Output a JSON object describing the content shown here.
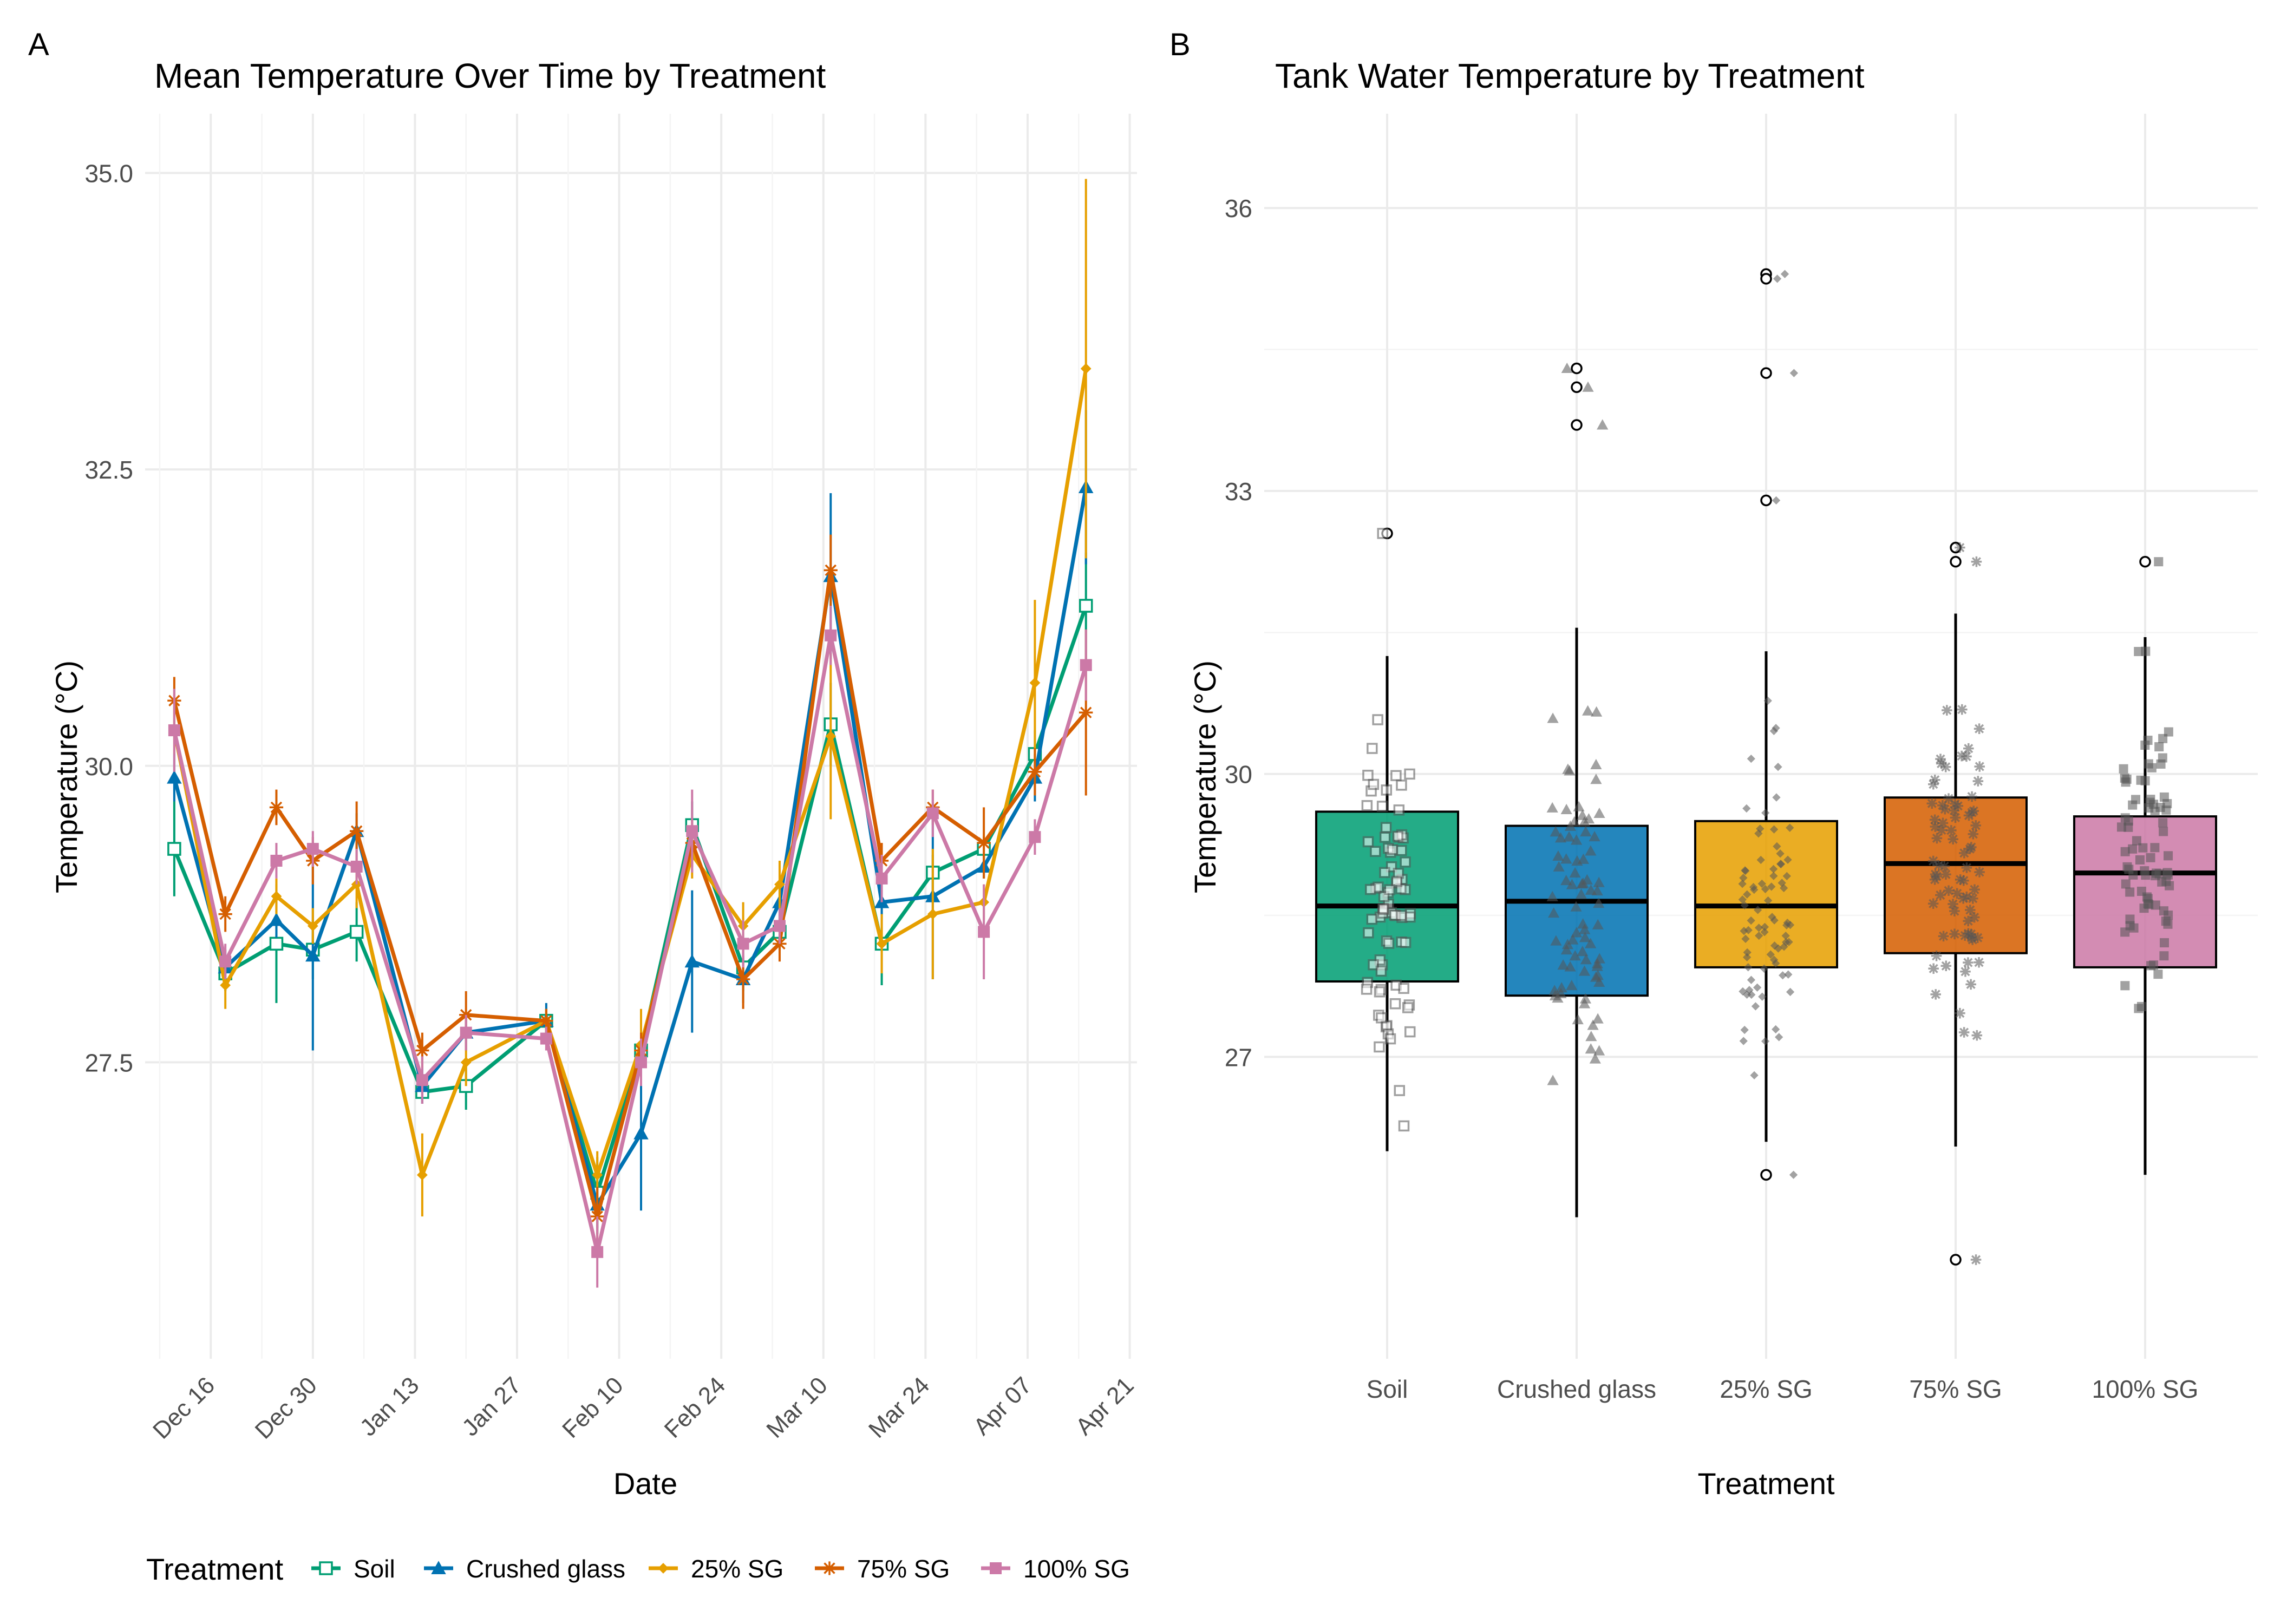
{
  "colors": {
    "soil": "#009E73",
    "crushed_glass": "#0072B2",
    "sg25": "#E69F00",
    "sg75": "#D55E00",
    "sg100": "#CC79A7",
    "grid": "#ebebeb",
    "text": "#222222",
    "axis_text": "#4d4d4d"
  },
  "chart_data": [
    {
      "panel_tag": "A",
      "type": "line",
      "title": "Mean Temperature Over Time by Treatment",
      "xlabel": "Date",
      "ylabel": "Temperature (°C)",
      "x_tick_labels": [
        "Dec 16",
        "Dec 30",
        "Jan 13",
        "Jan 27",
        "Feb 10",
        "Feb 24",
        "Mar 10",
        "Mar 24",
        "Apr 07",
        "Apr 21"
      ],
      "y_ticks": [
        27.5,
        30.0,
        32.5,
        35.0
      ],
      "y_tick_labels": [
        "27.5",
        "30.0",
        "32.5",
        "35.0"
      ],
      "ylim": [
        25.0,
        35.5
      ],
      "xlim": [
        "2024-12-07",
        "2025-04-22"
      ],
      "grid": true,
      "legend": {
        "position": "bottom",
        "title": "Treatment",
        "entries": [
          "Soil",
          "Crushed glass",
          "25% SG",
          "75% SG",
          "100% SG"
        ]
      },
      "x": [
        "2024-12-11",
        "2024-12-18",
        "2024-12-25",
        "2024-12-30",
        "2025-01-05",
        "2025-01-14",
        "2025-01-20",
        "2025-01-31",
        "2025-02-07",
        "2025-02-13",
        "2025-02-20",
        "2025-02-27",
        "2025-03-04",
        "2025-03-11",
        "2025-03-18",
        "2025-03-25",
        "2025-04-01",
        "2025-04-08",
        "2025-04-15"
      ],
      "series": [
        {
          "name": "Soil",
          "color_key": "soil",
          "marker": "square-open",
          "values": [
            29.3,
            28.25,
            28.5,
            28.45,
            28.6,
            27.25,
            27.3,
            27.85,
            26.4,
            27.6,
            29.5,
            28.3,
            28.6,
            30.35,
            28.5,
            29.1,
            29.3,
            30.1,
            31.35
          ],
          "err_low": [
            28.9,
            28.1,
            28.0,
            28.2,
            28.35,
            27.15,
            27.1,
            27.75,
            26.1,
            27.4,
            29.3,
            28.1,
            28.45,
            30.0,
            28.15,
            28.95,
            29.2,
            29.9,
            30.9
          ],
          "err_high": [
            29.7,
            28.4,
            29.0,
            28.7,
            28.85,
            27.35,
            27.5,
            27.95,
            26.7,
            27.8,
            29.7,
            28.5,
            28.75,
            30.7,
            28.85,
            29.25,
            29.4,
            30.3,
            31.8
          ]
        },
        {
          "name": "Crushed glass",
          "color_key": "crushed_glass",
          "marker": "triangle",
          "values": [
            29.9,
            28.3,
            28.7,
            28.4,
            29.45,
            27.3,
            27.75,
            27.85,
            26.3,
            26.9,
            28.35,
            28.2,
            28.85,
            31.6,
            28.85,
            28.9,
            29.15,
            29.9,
            32.35
          ],
          "err_low": [
            29.7,
            28.15,
            28.55,
            27.6,
            29.3,
            27.15,
            27.6,
            27.7,
            26.05,
            26.25,
            27.75,
            28.0,
            28.7,
            30.9,
            28.7,
            28.2,
            29.05,
            29.7,
            31.7
          ],
          "err_high": [
            30.1,
            28.45,
            28.85,
            29.2,
            29.6,
            27.45,
            27.9,
            28.0,
            26.55,
            27.55,
            28.95,
            28.4,
            29.0,
            32.3,
            29.0,
            29.6,
            29.25,
            30.1,
            33.0
          ]
        },
        {
          "name": "25% SG",
          "color_key": "sg25",
          "marker": "diamond",
          "values": [
            30.3,
            28.15,
            28.9,
            28.65,
            29.0,
            26.55,
            27.5,
            27.85,
            26.55,
            27.65,
            29.25,
            28.65,
            29.0,
            30.25,
            28.5,
            28.75,
            28.85,
            30.7,
            33.35
          ],
          "err_low": [
            30.1,
            27.95,
            28.75,
            28.5,
            28.8,
            26.2,
            27.3,
            27.75,
            26.35,
            27.35,
            29.05,
            28.45,
            28.8,
            29.55,
            28.25,
            28.2,
            28.7,
            29.9,
            31.75
          ],
          "err_high": [
            30.5,
            28.35,
            29.05,
            28.8,
            29.2,
            26.9,
            27.7,
            27.95,
            26.75,
            27.95,
            29.45,
            28.85,
            29.2,
            30.95,
            28.75,
            29.3,
            29.0,
            31.4,
            34.95
          ]
        },
        {
          "name": "75% SG",
          "color_key": "sg75",
          "marker": "asterisk",
          "values": [
            30.55,
            28.75,
            29.65,
            29.2,
            29.45,
            27.6,
            27.9,
            27.85,
            26.2,
            27.6,
            29.35,
            28.2,
            28.5,
            31.65,
            29.2,
            29.65,
            29.35,
            29.95,
            30.45
          ],
          "err_low": [
            30.35,
            28.6,
            29.5,
            29.0,
            29.2,
            27.45,
            27.7,
            27.75,
            25.95,
            27.45,
            29.15,
            27.95,
            28.35,
            31.35,
            29.05,
            29.5,
            29.05,
            29.75,
            29.75
          ],
          "err_high": [
            30.75,
            28.9,
            29.8,
            29.4,
            29.7,
            27.75,
            28.1,
            27.95,
            26.45,
            27.75,
            29.55,
            28.45,
            28.65,
            31.95,
            29.35,
            29.8,
            29.65,
            30.15,
            31.15
          ]
        },
        {
          "name": "100% SG",
          "color_key": "sg100",
          "marker": "square",
          "values": [
            30.3,
            28.35,
            29.2,
            29.3,
            29.15,
            27.35,
            27.75,
            27.7,
            25.9,
            27.5,
            29.45,
            28.5,
            28.65,
            31.1,
            29.05,
            29.6,
            28.6,
            29.4,
            30.85
          ],
          "err_low": [
            29.95,
            28.2,
            29.05,
            29.15,
            29.0,
            27.15,
            27.6,
            27.6,
            25.6,
            27.3,
            29.1,
            28.3,
            28.5,
            30.85,
            28.85,
            29.4,
            28.2,
            29.25,
            30.55
          ],
          "err_high": [
            30.65,
            28.5,
            29.35,
            29.45,
            29.3,
            27.55,
            27.9,
            27.8,
            26.2,
            27.7,
            29.8,
            28.7,
            28.8,
            31.35,
            29.25,
            29.8,
            29.0,
            29.55,
            31.15
          ]
        }
      ]
    },
    {
      "panel_tag": "B",
      "type": "box",
      "title": "Tank Water Temperature by Treatment",
      "xlabel": "Treatment",
      "ylabel": "Temperature (°C)",
      "categories": [
        "Soil",
        "Crushed glass",
        "25% SG",
        "75% SG",
        "100% SG"
      ],
      "y_ticks": [
        27,
        30,
        33,
        36
      ],
      "y_tick_labels": [
        "27",
        "30",
        "33",
        "36"
      ],
      "ylim": [
        23.8,
        37.0
      ],
      "grid": true,
      "series": [
        {
          "name": "Soil",
          "color_key": "soil",
          "marker": "square-open",
          "q1": 27.8,
          "median": 28.6,
          "q3": 29.6,
          "whisker_low": 26.0,
          "whisker_high": 31.25,
          "outliers": [
            32.55
          ],
          "n_points": 80
        },
        {
          "name": "Crushed glass",
          "color_key": "crushed_glass",
          "marker": "triangle",
          "q1": 27.65,
          "median": 28.65,
          "q3": 29.45,
          "whisker_low": 25.3,
          "whisker_high": 31.55,
          "outliers": [
            34.3,
            34.1,
            33.7
          ],
          "n_points": 80
        },
        {
          "name": "25% SG",
          "color_key": "sg25",
          "marker": "diamond",
          "q1": 27.95,
          "median": 28.6,
          "q3": 29.5,
          "whisker_low": 26.1,
          "whisker_high": 31.3,
          "outliers": [
            35.3,
            35.25,
            34.25,
            32.9,
            25.75
          ],
          "n_points": 80
        },
        {
          "name": "75% SG",
          "color_key": "sg75",
          "marker": "asterisk",
          "q1": 28.1,
          "median": 29.05,
          "q3": 29.75,
          "whisker_low": 26.05,
          "whisker_high": 31.7,
          "outliers": [
            32.4,
            32.25,
            24.85
          ],
          "n_points": 80
        },
        {
          "name": "100% SG",
          "color_key": "sg100",
          "marker": "square",
          "q1": 27.95,
          "median": 28.95,
          "q3": 29.55,
          "whisker_low": 25.75,
          "whisker_high": 31.45,
          "outliers": [
            32.25
          ],
          "n_points": 80
        }
      ]
    }
  ]
}
